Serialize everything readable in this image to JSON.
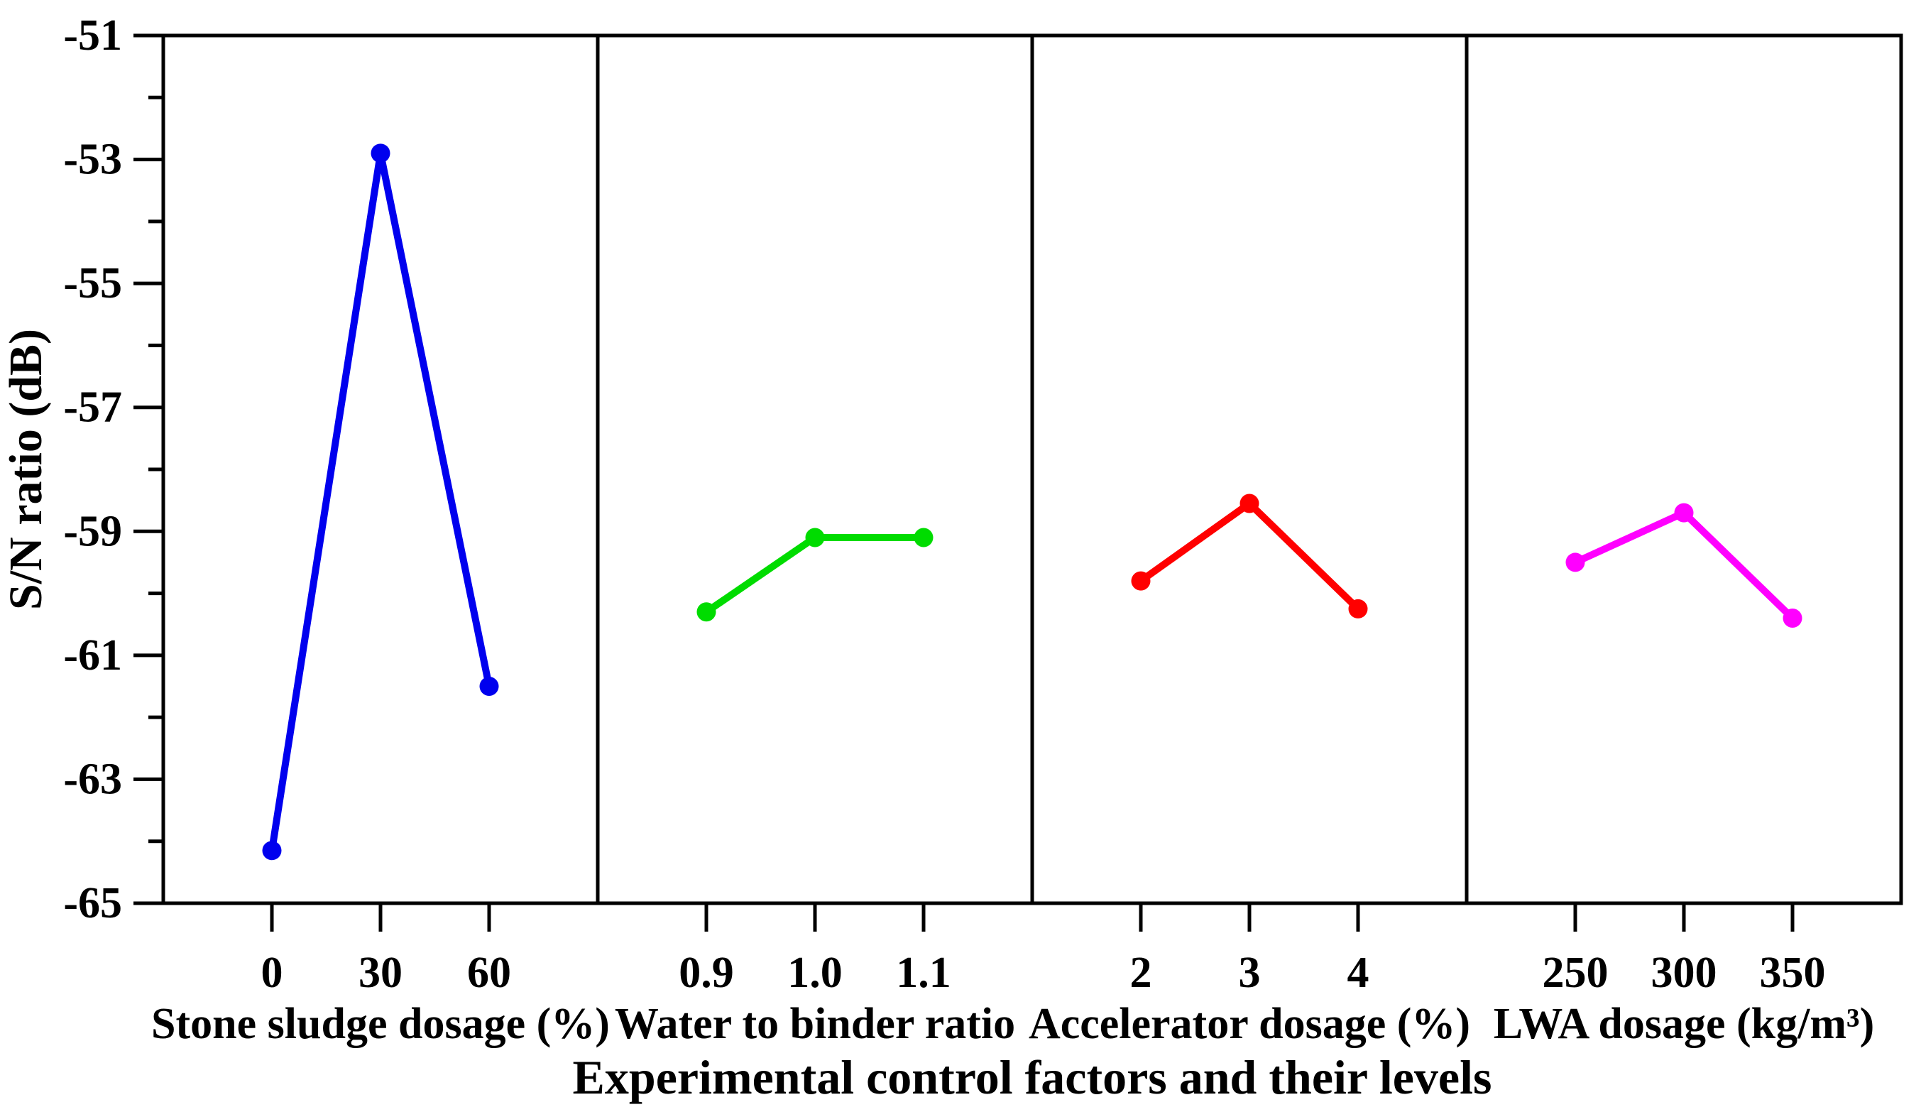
{
  "figure": {
    "background": "#ffffff",
    "axis_color": "#000000"
  },
  "chart_data": {
    "type": "line",
    "title": "",
    "xlabel": "Experimental control factors and their levels",
    "ylabel": "S/N ratio (dB)",
    "ylim": [
      -65,
      -51
    ],
    "y_major_ticks": [
      -51,
      -53,
      -55,
      -57,
      -59,
      -61,
      -63,
      -65
    ],
    "y_minor_ticks": [
      -52,
      -54,
      -56,
      -58,
      -60,
      -62,
      -64
    ],
    "y_tick_labels": [
      "-51",
      "-53",
      "-55",
      "-57",
      "-59",
      "-61",
      "-63",
      "-65"
    ],
    "grid": "off",
    "legend": "none",
    "layout_hint": "four vertically-separated panels sharing one y-axis",
    "panels": [
      {
        "factor_label": "Stone sludge dosage (%)",
        "levels": [
          "0",
          "30",
          "60"
        ],
        "values": [
          -64.15,
          -52.9,
          -61.5
        ],
        "color": "#0000EE"
      },
      {
        "factor_label": "Water to binder ratio",
        "levels": [
          "0.9",
          "1.0",
          "1.1"
        ],
        "values": [
          -60.3,
          -59.1,
          -59.1
        ],
        "color": "#00DC00"
      },
      {
        "factor_label": "Accelerator dosage (%)",
        "levels": [
          "2",
          "3",
          "4"
        ],
        "values": [
          -59.8,
          -58.55,
          -60.25
        ],
        "color": "#FF0000"
      },
      {
        "factor_label": "LWA dosage (kg/m³)",
        "levels": [
          "250",
          "300",
          "350"
        ],
        "values": [
          -59.5,
          -58.7,
          -60.4
        ],
        "color": "#FF00FF"
      }
    ]
  }
}
